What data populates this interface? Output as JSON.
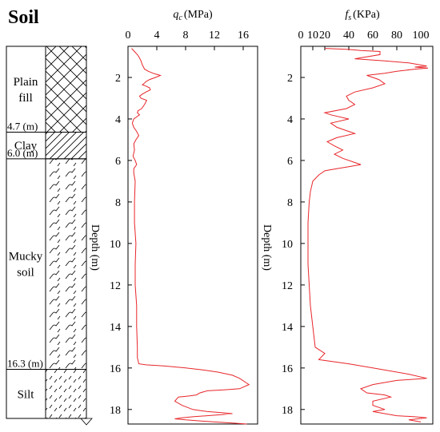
{
  "soil_column": {
    "title": "Soil",
    "layers": [
      {
        "name": "Plain fill",
        "name_lines": [
          "Plain",
          "fill"
        ],
        "top": 0.5,
        "bottom": 4.7,
        "pattern": "crosshatch"
      },
      {
        "name": "Clay",
        "name_lines": [
          "Clay"
        ],
        "top": 4.7,
        "bottom": 6.0,
        "pattern": "diagonal"
      },
      {
        "name": "Mucky soil",
        "name_lines": [
          "Mucky",
          "soil"
        ],
        "top": 6.0,
        "bottom": 16.3,
        "pattern": "wave"
      },
      {
        "name": "Silt",
        "name_lines": [
          "Silt"
        ],
        "top": 16.3,
        "bottom": 18.7,
        "pattern": "dash"
      }
    ],
    "boundary_labels": [
      "4.7 (m)",
      "6.0 (m)",
      "16.3 (m)"
    ]
  },
  "chart_data": [
    {
      "type": "line",
      "title_symbol": "q",
      "title_subscript": "c",
      "title_unit": "(MPa)",
      "ylabel": "Depth (m)",
      "xlim": [
        0,
        18
      ],
      "ylim": [
        0.5,
        18.7
      ],
      "x_ticks": [
        "0",
        "4",
        "8",
        "12",
        "16"
      ],
      "y_ticks": [
        "2",
        "4",
        "6",
        "8",
        "10",
        "12",
        "14",
        "16",
        "18"
      ],
      "line_color": "#e8262a",
      "series": [
        {
          "x": [
            0.5,
            0.9,
            1.3,
            1.5,
            1.8,
            2.0,
            2.3,
            2.8,
            3.5,
            4.0,
            4.5,
            3.8,
            3.0,
            2.5,
            2.2,
            2.0,
            2.4,
            3.0,
            3.1,
            2.5,
            2.0,
            1.6,
            1.8,
            2.6,
            2.3,
            1.9,
            1.4,
            1.3,
            1.6,
            1.2,
            0.8,
            0.6,
            0.8,
            1.2,
            1.5,
            1.1,
            0.8,
            0.9,
            0.7,
            1.0,
            1.2,
            0.8,
            0.8,
            1.0,
            0.9,
            0.9,
            1.1,
            1.0,
            1.0,
            1.2,
            1.2,
            1.3,
            1.3,
            1.5,
            2.5,
            5.0,
            8.0,
            10.5,
            12.5,
            14.5,
            15.5,
            16.8,
            15.5,
            13.5,
            11.0,
            10.0,
            9.5,
            8.5,
            7.0,
            6.5,
            7.5,
            9.0,
            11.0,
            13.0,
            14.5,
            13.0,
            11.0,
            9.0,
            7.5,
            6.5,
            8.0,
            10.0,
            12.0,
            14.5,
            16.5
          ],
          "y": [
            0.6,
            0.75,
            0.9,
            1.0,
            1.2,
            1.4,
            1.6,
            1.7,
            1.8,
            1.85,
            1.9,
            2.0,
            2.1,
            2.2,
            2.3,
            2.35,
            2.4,
            2.5,
            2.6,
            2.7,
            2.8,
            2.9,
            3.0,
            3.1,
            3.3,
            3.5,
            3.6,
            3.7,
            3.8,
            3.9,
            4.0,
            4.2,
            4.4,
            4.6,
            4.8,
            5.0,
            5.2,
            5.5,
            5.8,
            6.0,
            6.2,
            6.4,
            6.6,
            7.0,
            8.0,
            9.0,
            10.0,
            11.0,
            12.0,
            13.0,
            14.0,
            15.0,
            15.5,
            15.8,
            15.85,
            15.9,
            16.0,
            16.1,
            16.2,
            16.35,
            16.5,
            16.8,
            17.0,
            17.05,
            17.1,
            17.2,
            17.3,
            17.35,
            17.4,
            17.6,
            17.8,
            18.0,
            18.1,
            18.15,
            18.2,
            18.25,
            18.3,
            18.35,
            18.4,
            18.45,
            18.5,
            18.55,
            18.6,
            18.65,
            18.7
          ]
        }
      ]
    },
    {
      "type": "line",
      "title_symbol": "f",
      "title_subscript": "s",
      "title_unit": "(KPa)",
      "ylabel": "Depth (m)",
      "xlim": [
        0,
        110
      ],
      "ylim": [
        0.5,
        18.7
      ],
      "x_ticks": [
        "0",
        "10",
        "20",
        "40",
        "60",
        "80",
        "100"
      ],
      "y_ticks": [
        "2",
        "4",
        "6",
        "8",
        "10",
        "12",
        "14",
        "16",
        "18"
      ],
      "line_color": "#e8262a",
      "series": [
        {
          "x": [
            20,
            40,
            50,
            66,
            66,
            45,
            70,
            90,
            100,
            105,
            95,
            106,
            95,
            80,
            70,
            55,
            65,
            70,
            60,
            45,
            38,
            40,
            45,
            38,
            20,
            25,
            40,
            25,
            30,
            40,
            45,
            30,
            22,
            28,
            35,
            28,
            35,
            45,
            50,
            40,
            30,
            20,
            15,
            10,
            8,
            7,
            6,
            6,
            6,
            7,
            8,
            10,
            12,
            20,
            15,
            40,
            60,
            90,
            105,
            80,
            60,
            50,
            55,
            70,
            75,
            60,
            60,
            65,
            70,
            60,
            70,
            80,
            95,
            105,
            90,
            100
          ],
          "y": [
            0.6,
            0.65,
            0.7,
            0.75,
            0.9,
            1.1,
            1.2,
            1.3,
            1.4,
            1.45,
            1.5,
            1.55,
            1.6,
            1.7,
            1.8,
            1.9,
            2.1,
            2.3,
            2.5,
            2.7,
            2.9,
            3.1,
            3.3,
            3.5,
            3.7,
            3.8,
            4.0,
            4.2,
            4.4,
            4.6,
            4.7,
            4.9,
            5.1,
            5.3,
            5.5,
            5.7,
            5.9,
            6.1,
            6.2,
            6.3,
            6.4,
            6.5,
            6.7,
            7.0,
            7.5,
            8.0,
            9.0,
            10.0,
            11.0,
            12.0,
            13.0,
            14.0,
            15.0,
            15.3,
            15.6,
            15.8,
            16.0,
            16.3,
            16.5,
            16.6,
            16.8,
            17.0,
            17.2,
            17.3,
            17.4,
            17.6,
            17.8,
            17.9,
            18.0,
            18.1,
            18.2,
            18.3,
            18.35,
            18.4,
            18.5,
            18.6
          ]
        }
      ]
    }
  ]
}
